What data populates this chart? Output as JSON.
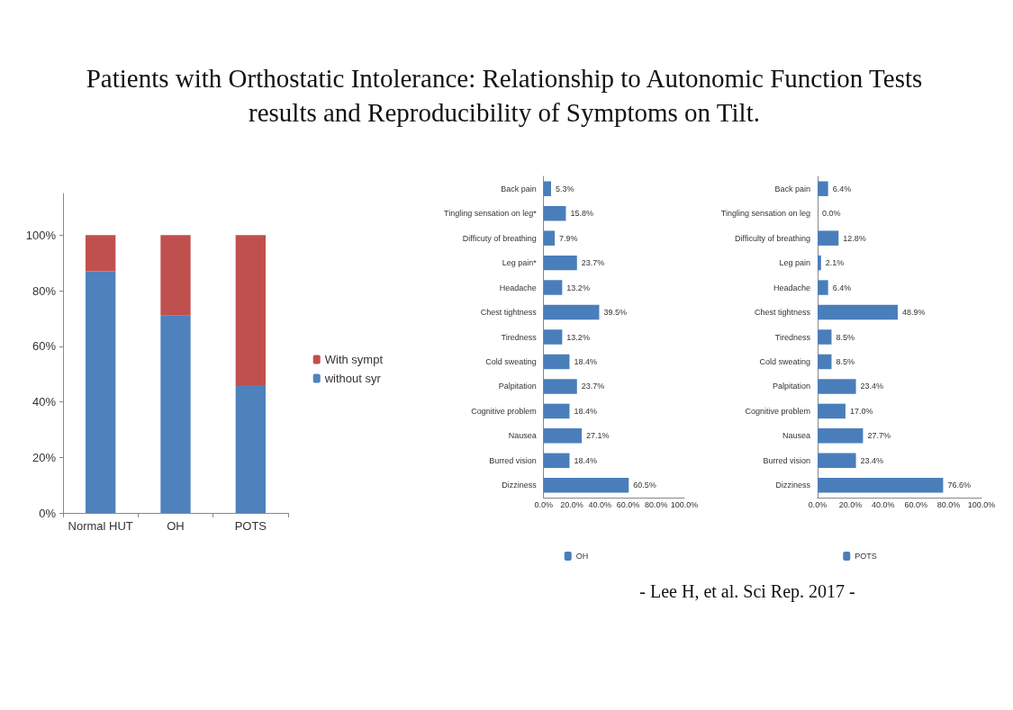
{
  "chart_data": [
    {
      "type": "bar",
      "title": "Patients with Orthostatic Intolerance: Relationship to Autonomic Function Tests results and Reproducibility of Symptoms on Tilt.",
      "categories": [
        "Normal HUT",
        "OH",
        "POTS"
      ],
      "stacked": true,
      "series": [
        {
          "name": "without syr",
          "color": "#4f81bd",
          "values": [
            87,
            71,
            46
          ]
        },
        {
          "name": "With sympt",
          "color": "#c0504d",
          "values": [
            13,
            29,
            54
          ]
        }
      ],
      "ylim": [
        0,
        115
      ],
      "yticks": [
        {
          "value": 0,
          "label": "0%"
        },
        {
          "value": 20,
          "label": "20%"
        },
        {
          "value": 40,
          "label": "40%"
        },
        {
          "value": 60,
          "label": "60%"
        },
        {
          "value": 80,
          "label": "80%"
        },
        {
          "value": 100,
          "label": "100%"
        }
      ],
      "legend": "right",
      "grid": false
    },
    {
      "type": "bar",
      "orientation": "horizontal",
      "categories": [
        "Back pain",
        "Tingling sensation on leg*",
        "Difficuty of breathing",
        "Leg pain*",
        "Headache",
        "Chest tightness",
        "Tiredness",
        "Cold sweating",
        "Palpitation",
        "Cognitive problem",
        "Nausea",
        "Burred vision",
        "Dizziness"
      ],
      "series": [
        {
          "name": "OH",
          "color": "#4a7ebb",
          "values": [
            5.3,
            15.8,
            7.9,
            23.7,
            13.2,
            39.5,
            13.2,
            18.4,
            23.7,
            18.4,
            27.1,
            18.4,
            60.5
          ],
          "value_labels": [
            "5.3%",
            "15.8%",
            "7.9%",
            "23.7%",
            "13.2%",
            "39.5%",
            "13.2%",
            "18.4%",
            "23.7%",
            "18.4%",
            "27.1%",
            "18.4%",
            "60.5%"
          ]
        }
      ],
      "xlim": [
        0,
        100
      ],
      "xticks": [
        {
          "value": 0,
          "label": "0.0%"
        },
        {
          "value": 20,
          "label": "20.0%"
        },
        {
          "value": 40,
          "label": "40.0%"
        },
        {
          "value": 60,
          "label": "60.0%"
        },
        {
          "value": 80,
          "label": "80.0%"
        },
        {
          "value": 100,
          "label": "100.0%"
        }
      ],
      "legend": "bottom",
      "grid": false
    },
    {
      "type": "bar",
      "orientation": "horizontal",
      "categories": [
        "Back pain",
        "Tingling sensation on leg",
        "Difficulty of breathing",
        "Leg pain",
        "Headache",
        "Chest tightness",
        "Tiredness",
        "Cold sweating",
        "Palpitation",
        "Cognitive problem",
        "Nausea",
        "Burred vision",
        "Dizziness"
      ],
      "series": [
        {
          "name": "POTS",
          "color": "#4a7ebb",
          "values": [
            6.4,
            0.0,
            12.8,
            2.1,
            6.4,
            48.9,
            8.5,
            8.5,
            23.4,
            17.0,
            27.7,
            23.4,
            76.6
          ],
          "value_labels": [
            "6.4%",
            "0.0%",
            "12.8%",
            "2.1%",
            "6.4%",
            "48.9%",
            "8.5%",
            "8.5%",
            "23.4%",
            "17.0%",
            "27.7%",
            "23.4%",
            "76.6%"
          ]
        }
      ],
      "xlim": [
        0,
        100
      ],
      "xticks": [
        {
          "value": 0,
          "label": "0.0%"
        },
        {
          "value": 20,
          "label": "20.0%"
        },
        {
          "value": 40,
          "label": "40.0%"
        },
        {
          "value": 60,
          "label": "60.0%"
        },
        {
          "value": 80,
          "label": "80.0%"
        },
        {
          "value": 100,
          "label": "100.0%"
        }
      ],
      "legend": "bottom",
      "grid": false,
      "annotations": [
        "- Lee H, et al. Sci Rep. 2017 -"
      ]
    }
  ]
}
